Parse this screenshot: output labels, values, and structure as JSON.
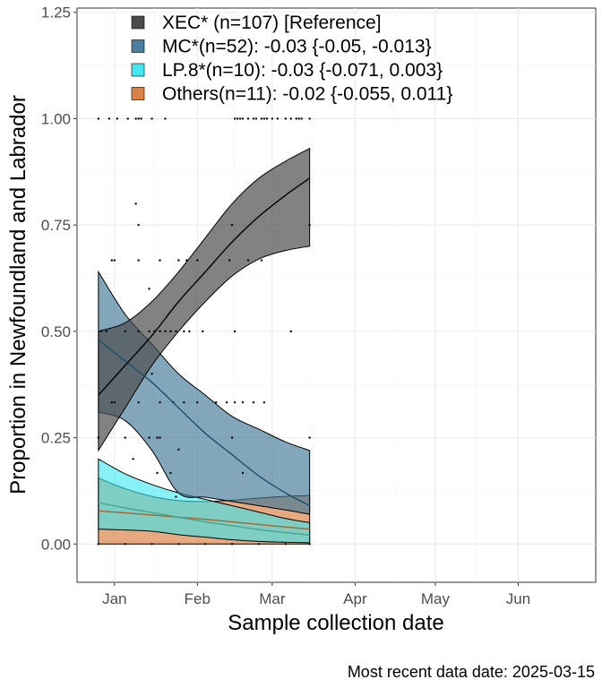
{
  "chart_data": {
    "type": "area",
    "xlabel": "Sample collection date",
    "ylabel": "Proportion in Newfoundland and Labrador",
    "caption": "Most recent data date: 2025-03-15",
    "x_domain": [
      "2024-12-18",
      "2025-06-30"
    ],
    "x_ticks": [
      {
        "date": "2025-01-01",
        "label": "Jan"
      },
      {
        "date": "2025-02-01",
        "label": "Feb"
      },
      {
        "date": "2025-03-01",
        "label": "Mar"
      },
      {
        "date": "2025-04-01",
        "label": "Apr"
      },
      {
        "date": "2025-05-01",
        "label": "May"
      },
      {
        "date": "2025-06-01",
        "label": "Jun"
      }
    ],
    "ylim": [
      -0.09,
      1.26
    ],
    "y_ticks": [
      {
        "value": 0,
        "label": "0.00"
      },
      {
        "value": 0.25,
        "label": "0.25"
      },
      {
        "value": 0.5,
        "label": "0.50"
      },
      {
        "value": 0.75,
        "label": "0.75"
      },
      {
        "value": 1,
        "label": "1.00"
      },
      {
        "value": 1.25,
        "label": "1.25"
      }
    ],
    "grid": true,
    "legend_position": "top-left inside",
    "legend": [
      {
        "label": "XEC* (n=107)  [Reference]",
        "color": "#404040"
      },
      {
        "label": "MC*(n=52): -0.03 {-0.05, -0.013}",
        "color": "#3f7896"
      },
      {
        "label": "LP.8*(n=10): -0.03 {-0.071, 0.003}",
        "color": "#38e8f0"
      },
      {
        "label": "Others(n=11): -0.02 {-0.055, 0.011}",
        "color": "#d97b3c"
      }
    ],
    "series": [
      {
        "name": "XEC*",
        "color": "#404040",
        "fill": "#4d4d4d",
        "fill_opacity": 0.7,
        "line": "#000000",
        "x": [
          "2024-12-26",
          "2025-01-05",
          "2025-01-15",
          "2025-01-25",
          "2025-02-04",
          "2025-02-14",
          "2025-02-24",
          "2025-03-06",
          "2025-03-15"
        ],
        "fit": [
          0.35,
          0.42,
          0.49,
          0.57,
          0.64,
          0.71,
          0.77,
          0.82,
          0.86
        ],
        "lower": [
          0.22,
          0.32,
          0.42,
          0.5,
          0.57,
          0.63,
          0.67,
          0.69,
          0.7
        ],
        "upper": [
          0.5,
          0.52,
          0.57,
          0.64,
          0.72,
          0.8,
          0.86,
          0.9,
          0.93
        ]
      },
      {
        "name": "MC*",
        "color": "#3f7896",
        "fill": "#3f7896",
        "fill_opacity": 0.65,
        "line": "#1e4f6a",
        "x": [
          "2024-12-26",
          "2025-01-05",
          "2025-01-15",
          "2025-01-25",
          "2025-02-04",
          "2025-02-14",
          "2025-02-24",
          "2025-03-06",
          "2025-03-15"
        ],
        "fit": [
          0.48,
          0.43,
          0.38,
          0.32,
          0.26,
          0.21,
          0.16,
          0.12,
          0.09
        ],
        "lower": [
          0.31,
          0.29,
          0.22,
          0.12,
          0.11,
          0.1,
          0.09,
          0.08,
          0.07
        ],
        "upper": [
          0.64,
          0.54,
          0.47,
          0.4,
          0.35,
          0.3,
          0.27,
          0.24,
          0.22
        ]
      },
      {
        "name": "LP.8*",
        "color": "#38e8f0",
        "fill": "#38e8f0",
        "fill_opacity": 0.6,
        "line": "#4aa58f",
        "x": [
          "2024-12-26",
          "2025-01-05",
          "2025-01-15",
          "2025-01-25",
          "2025-02-04",
          "2025-02-14",
          "2025-02-24",
          "2025-03-06",
          "2025-03-15"
        ],
        "fit": [
          0.097,
          0.085,
          0.074,
          0.063,
          0.052,
          0.043,
          0.034,
          0.027,
          0.021
        ],
        "lower": [
          0.035,
          0.033,
          0.03,
          0.022,
          0.016,
          0.01,
          0.006,
          0.004,
          0.003
        ],
        "upper": [
          0.2,
          0.165,
          0.14,
          0.12,
          0.105,
          0.09,
          0.075,
          0.06,
          0.05
        ]
      },
      {
        "name": "Others",
        "color": "#d97b3c",
        "fill": "#d97b3c",
        "fill_opacity": 0.65,
        "line": "#a6642e",
        "x": [
          "2024-12-26",
          "2025-01-05",
          "2025-01-15",
          "2025-01-25",
          "2025-02-04",
          "2025-02-14",
          "2025-02-24",
          "2025-03-06",
          "2025-03-15"
        ],
        "fit": [
          0.078,
          0.073,
          0.068,
          0.063,
          0.058,
          0.052,
          0.046,
          0.04,
          0.035
        ],
        "lower": [
          0.0,
          0.0,
          0.0,
          0.0,
          0.0,
          0.0,
          0.0,
          0.0,
          0.0
        ],
        "upper": [
          0.155,
          0.13,
          0.112,
          0.102,
          0.1,
          0.103,
          0.108,
          0.112,
          0.114
        ]
      }
    ],
    "points": [
      {
        "date": "2024-12-26",
        "value": 1.0
      },
      {
        "date": "2024-12-30",
        "value": 1.0
      },
      {
        "date": "2025-01-02",
        "value": 1.0
      },
      {
        "date": "2025-01-06",
        "value": 1.0
      },
      {
        "date": "2025-01-09",
        "value": 1.0
      },
      {
        "date": "2025-01-10",
        "value": 1.0
      },
      {
        "date": "2025-01-11",
        "value": 1.0
      },
      {
        "date": "2025-01-15",
        "value": 1.0
      },
      {
        "date": "2025-01-20",
        "value": 1.0
      },
      {
        "date": "2025-02-15",
        "value": 1.0
      },
      {
        "date": "2025-02-16",
        "value": 1.0
      },
      {
        "date": "2025-02-17",
        "value": 1.0
      },
      {
        "date": "2025-02-18",
        "value": 1.0
      },
      {
        "date": "2025-02-20",
        "value": 1.0
      },
      {
        "date": "2025-02-22",
        "value": 1.0
      },
      {
        "date": "2025-02-23",
        "value": 1.0
      },
      {
        "date": "2025-02-25",
        "value": 1.0
      },
      {
        "date": "2025-02-26",
        "value": 1.0
      },
      {
        "date": "2025-02-27",
        "value": 1.0
      },
      {
        "date": "2025-03-01",
        "value": 1.0
      },
      {
        "date": "2025-03-03",
        "value": 1.0
      },
      {
        "date": "2025-03-06",
        "value": 1.0
      },
      {
        "date": "2025-03-08",
        "value": 1.0
      },
      {
        "date": "2025-03-10",
        "value": 1.0
      },
      {
        "date": "2025-03-11",
        "value": 1.0
      },
      {
        "date": "2025-03-12",
        "value": 1.0
      },
      {
        "date": "2025-03-15",
        "value": 1.0
      },
      {
        "date": "2025-01-09",
        "value": 0.8
      },
      {
        "date": "2025-01-10",
        "value": 0.75
      },
      {
        "date": "2025-02-14",
        "value": 0.75
      },
      {
        "date": "2025-03-15",
        "value": 0.75
      },
      {
        "date": "2024-12-31",
        "value": 0.667
      },
      {
        "date": "2025-01-01",
        "value": 0.667
      },
      {
        "date": "2025-01-10",
        "value": 0.667
      },
      {
        "date": "2025-01-18",
        "value": 0.667
      },
      {
        "date": "2025-01-25",
        "value": 0.667
      },
      {
        "date": "2025-01-28",
        "value": 0.667
      },
      {
        "date": "2025-02-01",
        "value": 0.667
      },
      {
        "date": "2025-02-13",
        "value": 0.667
      },
      {
        "date": "2025-02-20",
        "value": 0.667
      },
      {
        "date": "2025-02-25",
        "value": 0.667
      },
      {
        "date": "2025-01-14",
        "value": 0.6
      },
      {
        "date": "2024-12-27",
        "value": 0.5
      },
      {
        "date": "2024-12-29",
        "value": 0.5
      },
      {
        "date": "2025-01-05",
        "value": 0.5
      },
      {
        "date": "2025-01-10",
        "value": 0.5
      },
      {
        "date": "2025-01-14",
        "value": 0.5
      },
      {
        "date": "2025-01-16",
        "value": 0.5
      },
      {
        "date": "2025-01-18",
        "value": 0.5
      },
      {
        "date": "2025-01-20",
        "value": 0.5
      },
      {
        "date": "2025-01-22",
        "value": 0.5
      },
      {
        "date": "2025-01-24",
        "value": 0.5
      },
      {
        "date": "2025-01-27",
        "value": 0.5
      },
      {
        "date": "2025-01-29",
        "value": 0.5
      },
      {
        "date": "2025-02-03",
        "value": 0.5
      },
      {
        "date": "2025-02-15",
        "value": 0.5
      },
      {
        "date": "2025-03-08",
        "value": 0.5
      },
      {
        "date": "2025-01-15",
        "value": 0.4
      },
      {
        "date": "2024-12-31",
        "value": 0.333
      },
      {
        "date": "2025-01-01",
        "value": 0.333
      },
      {
        "date": "2025-01-10",
        "value": 0.333
      },
      {
        "date": "2025-01-18",
        "value": 0.333
      },
      {
        "date": "2025-01-23",
        "value": 0.333
      },
      {
        "date": "2025-01-27",
        "value": 0.333
      },
      {
        "date": "2025-02-01",
        "value": 0.333
      },
      {
        "date": "2025-02-08",
        "value": 0.333
      },
      {
        "date": "2025-02-12",
        "value": 0.333
      },
      {
        "date": "2025-02-15",
        "value": 0.333
      },
      {
        "date": "2025-02-18",
        "value": 0.333
      },
      {
        "date": "2025-02-22",
        "value": 0.333
      },
      {
        "date": "2025-02-26",
        "value": 0.333
      },
      {
        "date": "2024-12-26",
        "value": 0.25
      },
      {
        "date": "2025-01-05",
        "value": 0.25
      },
      {
        "date": "2025-01-14",
        "value": 0.25
      },
      {
        "date": "2025-01-17",
        "value": 0.25
      },
      {
        "date": "2025-01-18",
        "value": 0.25
      },
      {
        "date": "2025-02-14",
        "value": 0.25
      },
      {
        "date": "2025-03-15",
        "value": 0.25
      },
      {
        "date": "2025-01-25",
        "value": 0.222
      },
      {
        "date": "2025-01-08",
        "value": 0.2
      },
      {
        "date": "2025-01-17",
        "value": 0.167
      },
      {
        "date": "2025-01-22",
        "value": 0.167
      },
      {
        "date": "2025-02-18",
        "value": 0.167
      },
      {
        "date": "2025-01-24",
        "value": 0.111
      },
      {
        "date": "2024-12-26",
        "value": 0
      },
      {
        "date": "2025-01-05",
        "value": 0
      },
      {
        "date": "2025-01-15",
        "value": 0
      },
      {
        "date": "2025-01-25",
        "value": 0
      },
      {
        "date": "2025-02-04",
        "value": 0
      },
      {
        "date": "2025-02-14",
        "value": 0
      },
      {
        "date": "2025-02-24",
        "value": 0
      },
      {
        "date": "2025-03-06",
        "value": 0
      },
      {
        "date": "2025-03-15",
        "value": 0
      }
    ]
  }
}
